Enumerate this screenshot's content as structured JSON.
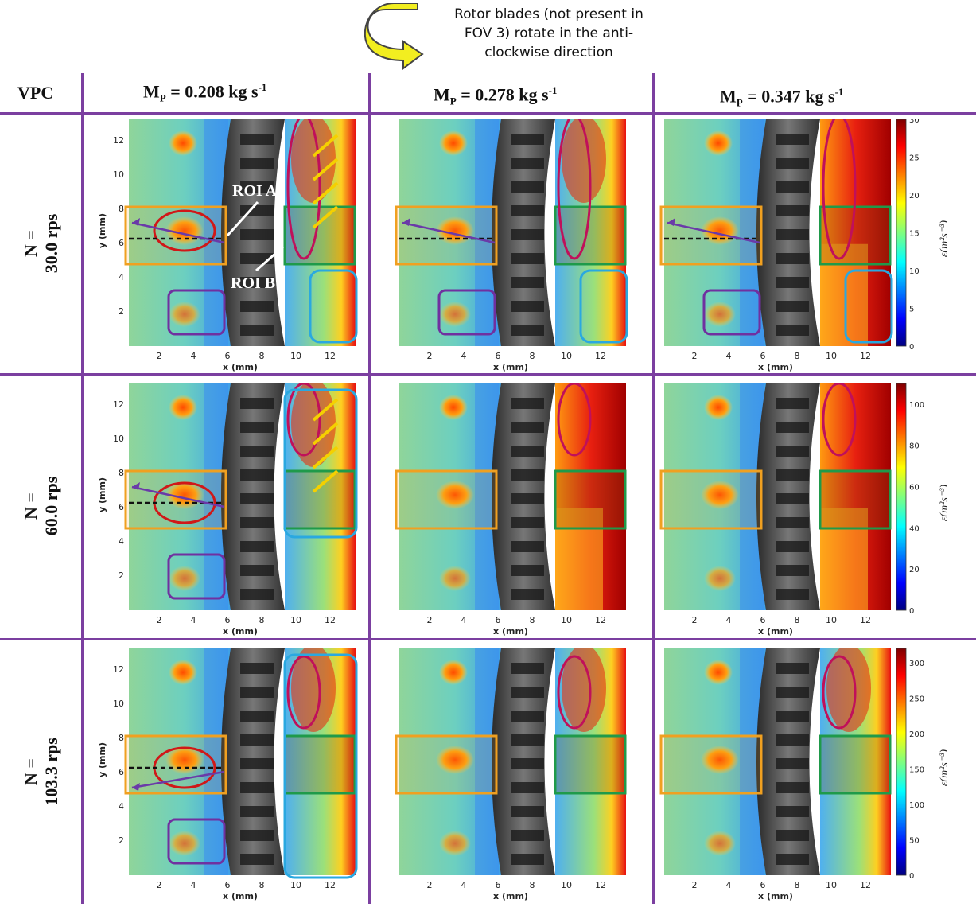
{
  "annotation": {
    "rotation_note_line1": "Rotor blades (not present in",
    "rotation_note_line2": "FOV 3) rotate in the anti-",
    "rotation_note_line3": "clockwise direction"
  },
  "header": {
    "corner": "VPC",
    "columns": [
      {
        "base": "M",
        "sub": "P",
        "text": " = 0.208 kg s",
        "sup": "-1"
      },
      {
        "base": "M",
        "sub": "P",
        "text": " = 0.278 kg s",
        "sup": "-1"
      },
      {
        "base": "M",
        "sub": "P",
        "text": " = 0.347 kg s",
        "sup": "-1"
      }
    ]
  },
  "rows": [
    {
      "line1": "N =",
      "line2": "30.0 rps",
      "cb_ticks": [
        "0",
        "5",
        "10",
        "15",
        "20",
        "25",
        "30"
      ],
      "cb_max": 30
    },
    {
      "line1": "N =",
      "line2": "60.0 rps",
      "cb_ticks": [
        "0",
        "20",
        "40",
        "60",
        "80",
        "100"
      ],
      "cb_max": 110
    },
    {
      "line1": "N =",
      "line2": "103.3 rps",
      "cb_ticks": [
        "0",
        "50",
        "100",
        "150",
        "200",
        "250",
        "300"
      ],
      "cb_max": 320
    }
  ],
  "axes": {
    "x_ticks": [
      "2",
      "4",
      "6",
      "8",
      "10",
      "12"
    ],
    "y_ticks": [
      "2",
      "4",
      "6",
      "8",
      "10",
      "12"
    ],
    "x_label": "x (mm)",
    "y_label": "y (mm)",
    "colorbar_label": "ε(m²s⁻³)"
  },
  "roi_labels": {
    "a": "ROI A",
    "b": "ROI B"
  },
  "colors": {
    "grid_lines": "#7b3fa0",
    "roi_orange": "#f0a020",
    "roi_green": "#1f9a4a",
    "roi_purple": "#7030a0",
    "roi_blue": "#2aa8e0",
    "ellipse_red": "#d01818",
    "ellipse_magenta": "#c0105a",
    "arrow_yellow": "#f5d000"
  }
}
